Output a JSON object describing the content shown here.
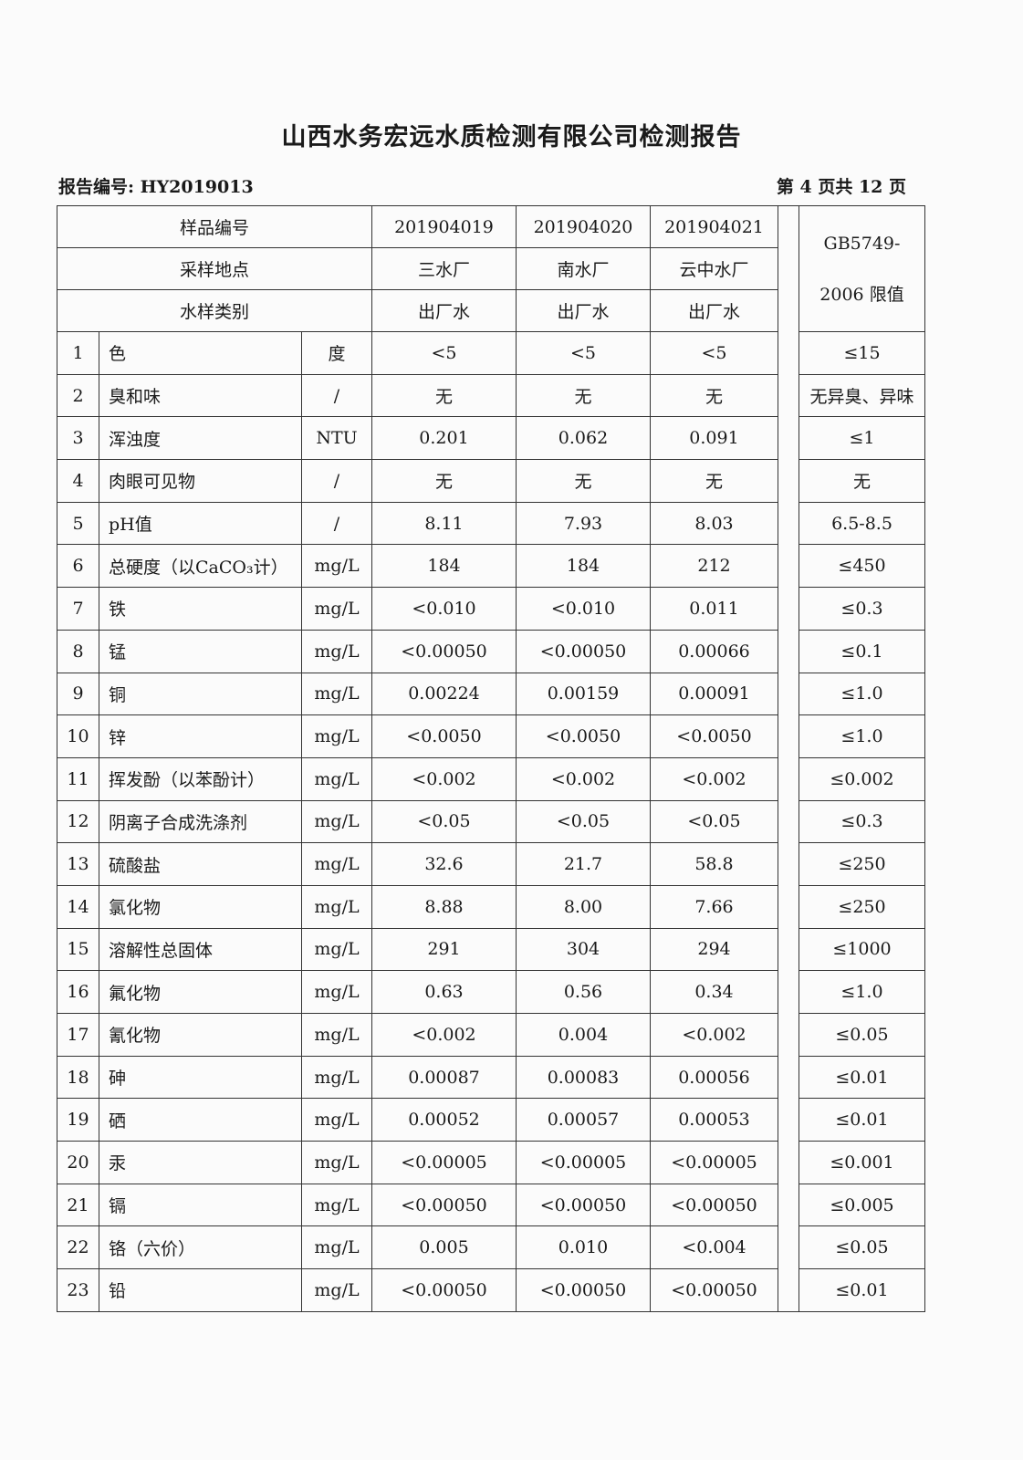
{
  "title": "山西水务宏远水质检测有限公司检测报告",
  "report_no": "报告编号: HY2019013",
  "page_no": "第 4 页共 12 页",
  "header": {
    "sample_no_label": "样品编号",
    "location_label": "采样地点",
    "type_label": "水样类别",
    "limit_label_1": "GB5749-",
    "limit_label_2": "2006 限值",
    "samples": [
      {
        "id": "201904019",
        "location": "三水厂",
        "type": "出厂水"
      },
      {
        "id": "201904020",
        "location": "南水厂",
        "type": "出厂水"
      },
      {
        "id": "201904021",
        "location": "云中水厂",
        "type": "出厂水"
      }
    ]
  },
  "rows": [
    [
      "1",
      "色",
      "度",
      "<5",
      "<5",
      "<5",
      "≤15"
    ],
    [
      "2",
      "臭和味",
      "/",
      "无",
      "无",
      "无",
      "无异臭、异味"
    ],
    [
      "3",
      "浑浊度",
      "NTU",
      "0.201",
      "0.062",
      "0.091",
      "≤1"
    ],
    [
      "4",
      "肉眼可见物",
      "/",
      "无",
      "无",
      "无",
      "无"
    ],
    [
      "5",
      "pH值",
      "/",
      "8.11",
      "7.93",
      "8.03",
      "6.5-8.5"
    ],
    [
      "6",
      "总硬度（以CaCO₃计）",
      "mg/L",
      "184",
      "184",
      "212",
      "≤450"
    ],
    [
      "7",
      "铁",
      "mg/L",
      "<0.010",
      "<0.010",
      "0.011",
      "≤0.3"
    ],
    [
      "8",
      "锰",
      "mg/L",
      "<0.00050",
      "<0.00050",
      "0.00066",
      "≤0.1"
    ],
    [
      "9",
      "铜",
      "mg/L",
      "0.00224",
      "0.00159",
      "0.00091",
      "≤1.0"
    ],
    [
      "10",
      "锌",
      "mg/L",
      "<0.0050",
      "<0.0050",
      "<0.0050",
      "≤1.0"
    ],
    [
      "11",
      "挥发酚（以苯酚计）",
      "mg/L",
      "<0.002",
      "<0.002",
      "<0.002",
      "≤0.002"
    ],
    [
      "12",
      "阴离子合成洗涤剂",
      "mg/L",
      "<0.05",
      "<0.05",
      "<0.05",
      "≤0.3"
    ],
    [
      "13",
      "硫酸盐",
      "mg/L",
      "32.6",
      "21.7",
      "58.8",
      "≤250"
    ],
    [
      "14",
      "氯化物",
      "mg/L",
      "8.88",
      "8.00",
      "7.66",
      "≤250"
    ],
    [
      "15",
      "溶解性总固体",
      "mg/L",
      "291",
      "304",
      "294",
      "≤1000"
    ],
    [
      "16",
      "氟化物",
      "mg/L",
      "0.63",
      "0.56",
      "0.34",
      "≤1.0"
    ],
    [
      "17",
      "氰化物",
      "mg/L",
      "<0.002",
      "0.004",
      "<0.002",
      "≤0.05"
    ],
    [
      "18",
      "砷",
      "mg/L",
      "0.00087",
      "0.00083",
      "0.00056",
      "≤0.01"
    ],
    [
      "19",
      "硒",
      "mg/L",
      "0.00052",
      "0.00057",
      "0.00053",
      "≤0.01"
    ],
    [
      "20",
      "汞",
      "mg/L",
      "<0.00005",
      "<0.00005",
      "<0.00005",
      "≤0.001"
    ],
    [
      "21",
      "镉",
      "mg/L",
      "<0.00050",
      "<0.00050",
      "<0.00050",
      "≤0.005"
    ],
    [
      "22",
      "铬（六价）",
      "mg/L",
      "0.005",
      "0.010",
      "<0.004",
      "≤0.05"
    ],
    [
      "23",
      "铅",
      "mg/L",
      "<0.00050",
      "<0.00050",
      "<0.00050",
      "≤0.01"
    ]
  ]
}
